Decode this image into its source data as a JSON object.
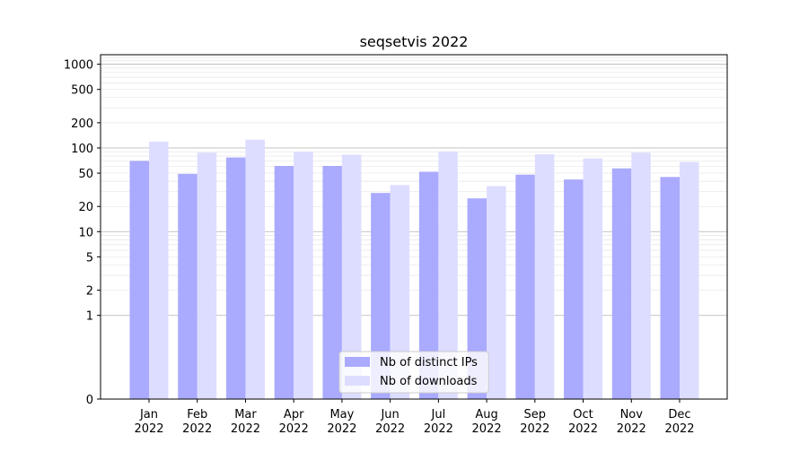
{
  "chart_data": {
    "type": "bar",
    "title": "seqsetvis 2022",
    "xlabel": "",
    "ylabel": "",
    "yscale": "symlog",
    "ylim": [
      0,
      1300
    ],
    "y_ticks": [
      {
        "value": 0,
        "label": "0"
      },
      {
        "value": 1,
        "label": "1"
      },
      {
        "value": 2,
        "label": "2"
      },
      {
        "value": 5,
        "label": "5"
      },
      {
        "value": 10,
        "label": "10"
      },
      {
        "value": 20,
        "label": "20"
      },
      {
        "value": 50,
        "label": "50"
      },
      {
        "value": 100,
        "label": "100"
      },
      {
        "value": 200,
        "label": "200"
      },
      {
        "value": 500,
        "label": "500"
      },
      {
        "value": 1000,
        "label": "1000"
      }
    ],
    "categories": [
      [
        "Jan",
        "2022"
      ],
      [
        "Feb",
        "2022"
      ],
      [
        "Mar",
        "2022"
      ],
      [
        "Apr",
        "2022"
      ],
      [
        "May",
        "2022"
      ],
      [
        "Jun",
        "2022"
      ],
      [
        "Jul",
        "2022"
      ],
      [
        "Aug",
        "2022"
      ],
      [
        "Sep",
        "2022"
      ],
      [
        "Oct",
        "2022"
      ],
      [
        "Nov",
        "2022"
      ],
      [
        "Dec",
        "2022"
      ]
    ],
    "series": [
      {
        "name": "Nb of distinct IPs",
        "color": "#aaaaff",
        "values": [
          70,
          49,
          77,
          61,
          61,
          29,
          52,
          25,
          48,
          42,
          57,
          45
        ]
      },
      {
        "name": "Nb of downloads",
        "color": "#ddddff",
        "values": [
          119,
          88,
          126,
          90,
          83,
          36,
          91,
          35,
          84,
          75,
          88,
          68
        ]
      }
    ],
    "legend": {
      "position": "lower-center"
    },
    "grid": true
  }
}
